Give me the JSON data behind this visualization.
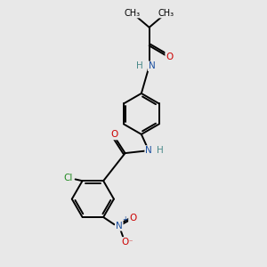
{
  "bg_color": "#e8e8e8",
  "bond_color": "#000000",
  "bond_lw": 1.4,
  "atom_colors": {
    "N": "#1a4fa0",
    "O": "#cc0000",
    "Cl": "#228B22",
    "H": "#4a8a8a"
  },
  "font_size": 7.5
}
